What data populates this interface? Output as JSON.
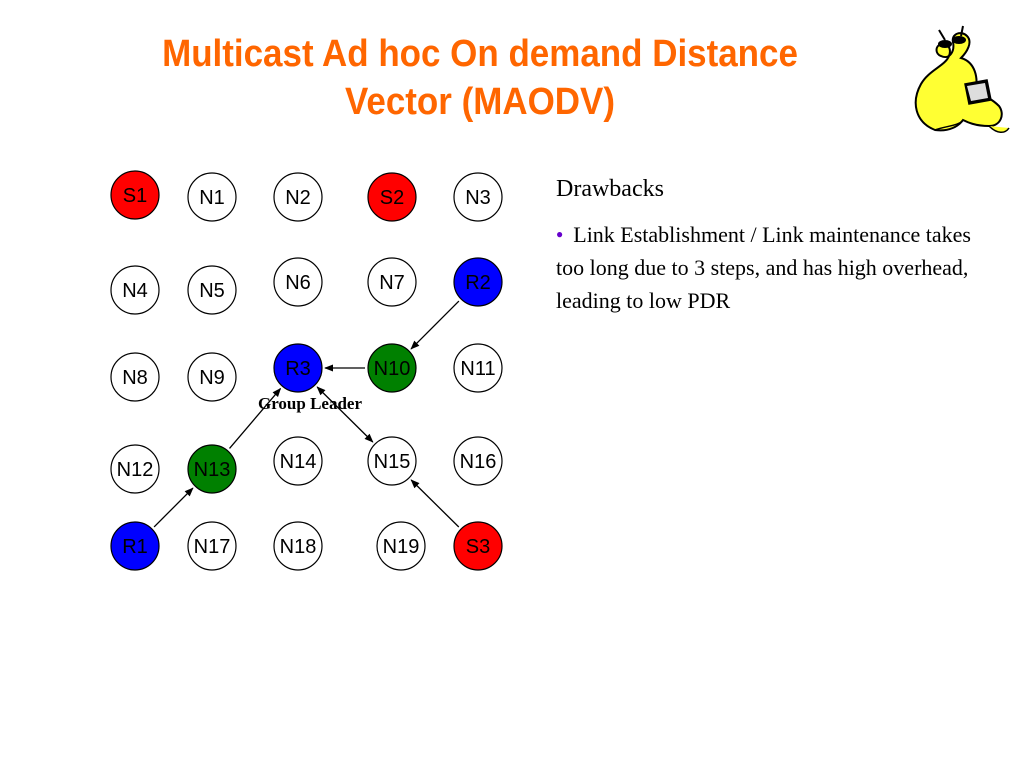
{
  "slide": {
    "title_line1": "Multicast Ad hoc On demand Distance",
    "title_line2": "Vector (MAODV)",
    "logo_icon": "slug-mascot-icon",
    "colors": {
      "title": "#ff6600",
      "source": "#ff0000",
      "receiver": "#0000ff",
      "tree_member": "#008000",
      "plain": "#ffffff",
      "bullet": "#6600cc"
    }
  },
  "diagram": {
    "group_leader_label": "Group Leader",
    "nodes": [
      {
        "id": "S1",
        "role": "source"
      },
      {
        "id": "N1",
        "role": "plain"
      },
      {
        "id": "N2",
        "role": "plain"
      },
      {
        "id": "S2",
        "role": "source"
      },
      {
        "id": "N3",
        "role": "plain"
      },
      {
        "id": "N4",
        "role": "plain"
      },
      {
        "id": "N5",
        "role": "plain"
      },
      {
        "id": "N6",
        "role": "plain"
      },
      {
        "id": "N7",
        "role": "plain"
      },
      {
        "id": "R2",
        "role": "receiver"
      },
      {
        "id": "N8",
        "role": "plain"
      },
      {
        "id": "N9",
        "role": "plain"
      },
      {
        "id": "R3",
        "role": "receiver"
      },
      {
        "id": "N10",
        "role": "tree_member"
      },
      {
        "id": "N11",
        "role": "plain"
      },
      {
        "id": "N12",
        "role": "plain"
      },
      {
        "id": "N13",
        "role": "tree_member"
      },
      {
        "id": "N14",
        "role": "plain"
      },
      {
        "id": "N15",
        "role": "plain"
      },
      {
        "id": "N16",
        "role": "plain"
      },
      {
        "id": "R1",
        "role": "receiver"
      },
      {
        "id": "N17",
        "role": "plain"
      },
      {
        "id": "N18",
        "role": "plain"
      },
      {
        "id": "N19",
        "role": "plain"
      },
      {
        "id": "S3",
        "role": "source"
      }
    ],
    "edges": [
      {
        "from": "R2",
        "to": "N10",
        "arrow": "end"
      },
      {
        "from": "N10",
        "to": "R3",
        "arrow": "end"
      },
      {
        "from": "N13",
        "to": "R3",
        "arrow": "end"
      },
      {
        "from": "R1",
        "to": "N13",
        "arrow": "end"
      },
      {
        "from": "R3",
        "to": "N15",
        "arrow": "both"
      },
      {
        "from": "S3",
        "to": "N15",
        "arrow": "end"
      }
    ]
  },
  "panel": {
    "heading": "Drawbacks",
    "bullets": [
      "Link Establishment / Link maintenance takes too long due to 3 steps, and has high overhead, leading to low PDR"
    ]
  }
}
